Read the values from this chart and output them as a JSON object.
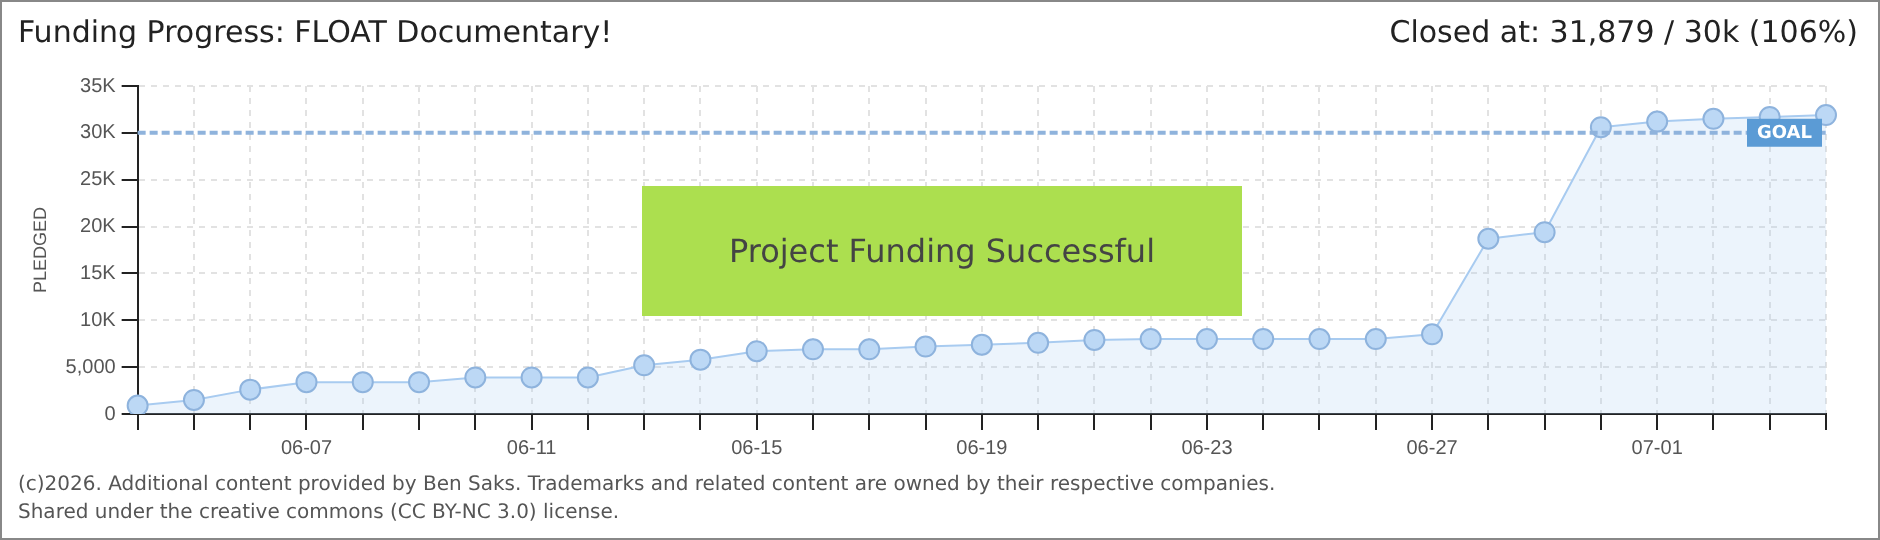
{
  "chart_data": {
    "type": "area",
    "title": "Funding Progress: FLOAT Documentary!",
    "subtitle": "Closed at:  31,879 /  30k (106%)",
    "ylabel": "PLEDGED",
    "categories": [
      null,
      null,
      null,
      "06-07",
      null,
      null,
      null,
      "06-11",
      null,
      null,
      null,
      "06-15",
      null,
      null,
      null,
      "06-19",
      null,
      null,
      null,
      "06-23",
      null,
      null,
      null,
      "06-27",
      null,
      null,
      null,
      "07-01",
      null,
      null,
      null
    ],
    "series": [
      {
        "color": "#a8cbf0",
        "values": [
          900,
          1500,
          2600,
          3400,
          3400,
          3400,
          3900,
          3900,
          3900,
          5200,
          5800,
          6700,
          6900,
          6900,
          7200,
          7400,
          7600,
          7900,
          8000,
          8000,
          8000,
          8000,
          8000,
          8500,
          18700,
          19400,
          30600,
          31200,
          31500,
          31700,
          31900
        ]
      }
    ],
    "ylim": [
      0,
      35000
    ],
    "yticks": [
      0,
      {
        "value": 5000,
        "label": "5,000"
      },
      {
        "value": 10000,
        "label": "10K"
      },
      {
        "value": 15000,
        "label": "15K"
      },
      {
        "value": 20000,
        "label": "20K"
      },
      {
        "value": 25000,
        "label": "25K"
      },
      {
        "value": 30000,
        "label": "30K"
      },
      {
        "value": 35000,
        "label": "35K"
      }
    ],
    "grid": true,
    "legend": false,
    "marker": "circle",
    "ref_lines": [
      {
        "axis": "y",
        "value": 30000,
        "label": "GOAL",
        "color": "#8fb3dc",
        "line_style": "dashed"
      }
    ],
    "annotations": [
      "Project Funding Successful",
      "(c)2026. Additional content provided by Ben Saks. Trademarks and related content are owned by their respective companies.",
      "Shared under the creative commons (CC BY-NC 3.0) license."
    ]
  }
}
